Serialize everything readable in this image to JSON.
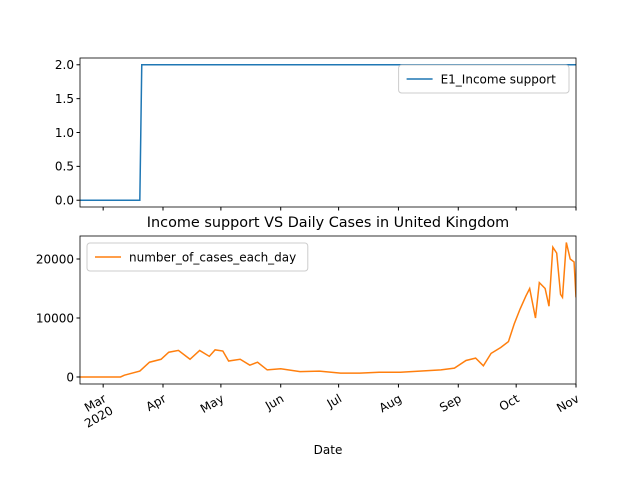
{
  "chart_data": [
    {
      "type": "line",
      "x": [
        -12,
        19,
        20,
        245
      ],
      "series": [
        {
          "name": "E1_Income support",
          "color": "#1f77b4",
          "values": [
            0,
            0,
            2,
            2
          ]
        }
      ],
      "xlim": [
        -12,
        245
      ],
      "xticks": [
        0,
        31,
        61,
        92,
        122,
        153,
        184,
        214,
        245
      ],
      "ylim": [
        -0.1,
        2.1
      ],
      "yticks": [
        {
          "value": 0,
          "label": "0.0"
        },
        0.5,
        {
          "value": 1,
          "label": "1.0"
        },
        1.5,
        {
          "value": 2,
          "label": "2.0"
        }
      ],
      "legend": "upper right"
    },
    {
      "type": "line",
      "title": "Income support VS Daily Cases in United Kingdom",
      "xlabel": "Date",
      "x": [
        -12,
        9,
        11,
        19,
        24,
        30,
        34,
        39,
        45,
        50,
        55,
        58,
        62,
        65,
        71,
        76,
        80,
        85,
        92,
        102,
        112,
        123,
        133,
        143,
        154,
        164,
        175,
        182,
        188,
        193,
        197,
        201,
        206,
        210,
        213,
        216,
        219,
        221,
        224,
        226,
        229,
        231,
        233,
        235,
        237,
        238,
        240,
        242,
        244,
        245
      ],
      "series": [
        {
          "name": "number_of_cases_each_day",
          "color": "#ff7f0e",
          "values": [
            0,
            0,
            300,
            1000,
            2500,
            3000,
            4200,
            4500,
            3000,
            4500,
            3500,
            4600,
            4400,
            2700,
            3000,
            2000,
            2500,
            1200,
            1400,
            900,
            1000,
            650,
            650,
            800,
            800,
            1000,
            1200,
            1500,
            2800,
            3200,
            1900,
            4000,
            5000,
            6000,
            9000,
            11500,
            13700,
            15000,
            10000,
            16000,
            15000,
            12000,
            22000,
            21000,
            14000,
            13500,
            22800,
            20000,
            19500,
            13500
          ]
        }
      ],
      "xlim": [
        -12,
        245
      ],
      "xticks": [
        {
          "value": 0,
          "label": "Mar\n2020"
        },
        {
          "value": 31,
          "label": "Apr"
        },
        {
          "value": 61,
          "label": "May"
        },
        {
          "value": 92,
          "label": "Jun"
        },
        {
          "value": 122,
          "label": "Jul"
        },
        {
          "value": 153,
          "label": "Aug"
        },
        {
          "value": 184,
          "label": "Sep"
        },
        {
          "value": 214,
          "label": "Oct"
        },
        {
          "value": 245,
          "label": "Nov"
        }
      ],
      "ylim": [
        -1190,
        23900
      ],
      "yticks": [
        0,
        10000,
        20000
      ],
      "legend": "upper left"
    }
  ]
}
